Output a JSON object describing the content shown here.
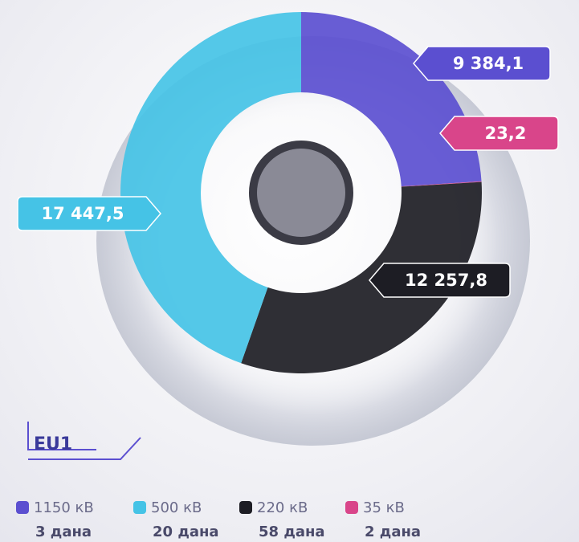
{
  "chart_data": {
    "type": "donut",
    "categories": [
      "1150 кВ",
      "35 кВ",
      "220 кВ",
      "500 кВ"
    ],
    "notes": [
      "3 дана",
      "2 дана",
      "58 дана",
      "20 дана"
    ],
    "values": [
      9384.1,
      23.2,
      12257.8,
      17447.5
    ],
    "value_labels": [
      "9 384,1",
      "23,2",
      "12 257,8",
      "17 447,5"
    ],
    "colors": [
      "#5b4fd0",
      "#d9458a",
      "#1d1d24",
      "#45c3e6"
    ],
    "label": "EU1"
  }
}
